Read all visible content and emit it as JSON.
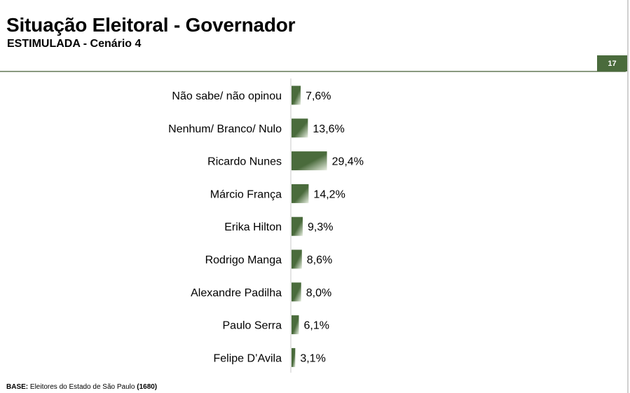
{
  "header": {
    "title": "Situação Eleitoral - Governador",
    "subtitle": "ESTIMULADA - Cenário 4",
    "page_number": "17"
  },
  "colors": {
    "bar_dark": "#4a6b3c",
    "bar_light": "#e8efe2",
    "accent": "#4a6b3c"
  },
  "chart_data": {
    "type": "bar",
    "orientation": "horizontal",
    "title": "",
    "xlabel": "",
    "ylabel": "",
    "categories": [
      "Não sabe/ não opinou",
      "Nenhum/ Branco/ Nulo",
      "Ricardo Nunes",
      "Márcio França",
      "Erika Hilton",
      "Rodrigo Manga",
      "Alexandre Padilha",
      "Paulo Serra",
      "Felipe D’Avila"
    ],
    "values": [
      7.6,
      13.6,
      29.4,
      14.2,
      9.3,
      8.6,
      8.0,
      6.1,
      3.1
    ],
    "value_labels": [
      "7,6%",
      "13,6%",
      "29,4%",
      "14,2%",
      "9,3%",
      "8,6%",
      "8,0%",
      "6,1%",
      "3,1%"
    ],
    "unit": "%",
    "grid": false,
    "legend": "none"
  },
  "footer": {
    "label": "BASE:",
    "text": " Eleitores do Estado de São Paulo ",
    "count": "(1680)"
  }
}
